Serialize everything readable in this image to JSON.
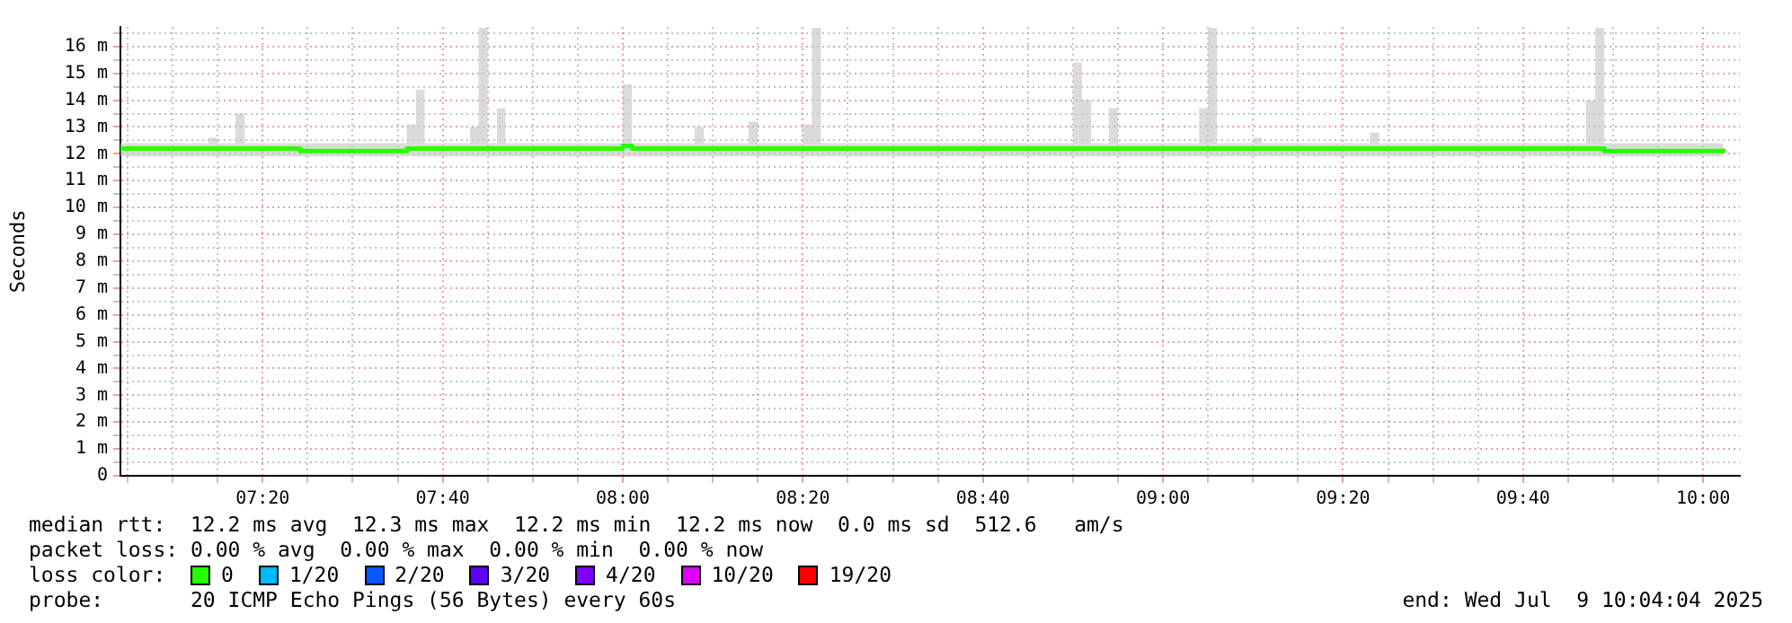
{
  "chart_data": {
    "type": "line",
    "ylabel": "Seconds",
    "legend_title": "loss color:",
    "legend": "bottom",
    "grid": true,
    "marker": "none",
    "x": [
      7.07,
      7.233,
      7.25,
      7.283,
      7.3,
      7.403,
      7.6,
      7.617,
      7.633,
      7.717,
      7.733,
      7.75,
      7.767,
      7.783,
      7.903,
      8.0,
      8.017,
      8.133,
      8.15,
      8.233,
      8.25,
      8.333,
      8.35,
      8.367,
      8.57,
      8.833,
      8.85,
      8.867,
      8.9,
      8.917,
      9.067,
      9.083,
      9.1,
      9.167,
      9.183,
      9.383,
      9.4,
      9.57,
      9.783,
      9.8,
      9.817,
      10.037
    ],
    "xlim": [
      7.07,
      10.068
    ],
    "xticks": [
      {
        "value": 7.0833,
        "label": null
      },
      {
        "value": 7.1667,
        "label": null
      },
      {
        "value": 7.25,
        "label": null
      },
      {
        "value": 7.3333,
        "label": "07:20"
      },
      {
        "value": 7.4167,
        "label": null
      },
      {
        "value": 7.5,
        "label": null
      },
      {
        "value": 7.5833,
        "label": null
      },
      {
        "value": 7.6667,
        "label": "07:40"
      },
      {
        "value": 7.75,
        "label": null
      },
      {
        "value": 7.8333,
        "label": null
      },
      {
        "value": 7.9167,
        "label": null
      },
      {
        "value": 8,
        "label": "08:00"
      },
      {
        "value": 8.0833,
        "label": null
      },
      {
        "value": 8.1667,
        "label": null
      },
      {
        "value": 8.25,
        "label": null
      },
      {
        "value": 8.3333,
        "label": "08:20"
      },
      {
        "value": 8.4167,
        "label": null
      },
      {
        "value": 8.5,
        "label": null
      },
      {
        "value": 8.5833,
        "label": null
      },
      {
        "value": 8.6667,
        "label": "08:40"
      },
      {
        "value": 8.75,
        "label": null
      },
      {
        "value": 8.8333,
        "label": null
      },
      {
        "value": 8.9167,
        "label": null
      },
      {
        "value": 9,
        "label": "09:00"
      },
      {
        "value": 9.0833,
        "label": null
      },
      {
        "value": 9.1667,
        "label": null
      },
      {
        "value": 9.25,
        "label": null
      },
      {
        "value": 9.3333,
        "label": "09:20"
      },
      {
        "value": 9.4167,
        "label": null
      },
      {
        "value": 9.5,
        "label": null
      },
      {
        "value": 9.5833,
        "label": null
      },
      {
        "value": 9.6667,
        "label": "09:40"
      },
      {
        "value": 9.75,
        "label": null
      },
      {
        "value": 9.8333,
        "label": null
      },
      {
        "value": 9.9167,
        "label": null
      },
      {
        "value": 10,
        "label": "10:00"
      }
    ],
    "ylim": [
      0,
      16.73
    ],
    "yticks": [
      0,
      {
        "value": 0.5,
        "label": null
      },
      {
        "value": 1,
        "label": "1 m"
      },
      {
        "value": 1.5,
        "label": null
      },
      {
        "value": 2,
        "label": "2 m"
      },
      {
        "value": 2.5,
        "label": null
      },
      {
        "value": 3,
        "label": "3 m"
      },
      {
        "value": 3.5,
        "label": null
      },
      {
        "value": 4,
        "label": "4 m"
      },
      {
        "value": 4.5,
        "label": null
      },
      {
        "value": 5,
        "label": "5 m"
      },
      {
        "value": 5.5,
        "label": null
      },
      {
        "value": 6,
        "label": "6 m"
      },
      {
        "value": 6.5,
        "label": null
      },
      {
        "value": 7,
        "label": "7 m"
      },
      {
        "value": 7.5,
        "label": null
      },
      {
        "value": 8,
        "label": "8 m"
      },
      {
        "value": 8.5,
        "label": null
      },
      {
        "value": 9,
        "label": "9 m"
      },
      {
        "value": 9.5,
        "label": null
      },
      {
        "value": 10,
        "label": "10 m"
      },
      {
        "value": 10.5,
        "label": null
      },
      {
        "value": 11,
        "label": "11 m"
      },
      {
        "value": 11.5,
        "label": null
      },
      {
        "value": 12,
        "label": "12 m"
      },
      {
        "value": 12.5,
        "label": null
      },
      {
        "value": 13,
        "label": "13 m"
      },
      {
        "value": 13.5,
        "label": null
      },
      {
        "value": 14,
        "label": "14 m"
      },
      {
        "value": 14.5,
        "label": null
      },
      {
        "value": 15,
        "label": "15 m"
      },
      {
        "value": 15.5,
        "label": null
      },
      {
        "value": 16,
        "label": "16 m"
      },
      {
        "value": 16.5,
        "label": null
      }
    ],
    "series": [
      {
        "name": "0",
        "color": "#26ff00",
        "values": [
          12.2,
          12.2,
          12.2,
          12.2,
          12.2,
          12.1,
          12.2,
          12.2,
          12.2,
          12.2,
          12.2,
          12.2,
          12.2,
          12.2,
          12.2,
          12.3,
          12.2,
          12.2,
          12.2,
          12.2,
          12.2,
          12.2,
          12.2,
          12.2,
          12.2,
          12.2,
          12.2,
          12.2,
          12.2,
          12.2,
          12.2,
          12.2,
          12.2,
          12.2,
          12.2,
          12.2,
          12.2,
          12.2,
          12.2,
          12.2,
          12.1,
          12.2
        ],
        "lower": [
          11.9,
          11.9,
          11.9,
          11.9,
          11.9,
          11.9,
          11.9,
          11.9,
          11.9,
          11.9,
          11.9,
          11.9,
          11.9,
          11.9,
          11.9,
          11.9,
          11.9,
          11.9,
          11.9,
          11.9,
          11.9,
          11.9,
          11.9,
          11.9,
          11.9,
          11.9,
          11.9,
          11.9,
          11.9,
          11.9,
          11.9,
          11.9,
          11.9,
          11.9,
          11.9,
          11.9,
          11.9,
          11.9,
          11.9,
          11.9,
          11.9,
          11.9
        ],
        "upper": [
          12.4,
          12.6,
          12.4,
          13.5,
          12.4,
          12.4,
          13.1,
          14.4,
          12.4,
          13.0,
          16.7,
          12.4,
          13.7,
          12.4,
          12.4,
          14.6,
          12.4,
          13.0,
          12.4,
          13.2,
          12.4,
          13.1,
          16.7,
          12.4,
          12.4,
          15.4,
          14.0,
          12.4,
          13.7,
          12.4,
          13.7,
          16.7,
          12.4,
          12.6,
          12.4,
          12.8,
          12.4,
          12.4,
          14.0,
          16.7,
          12.4,
          12.4
        ]
      },
      {
        "name": "1/20",
        "color": "#00b8ff",
        "values": [
          null,
          null,
          null,
          null,
          null,
          null,
          null,
          null,
          null,
          null,
          null,
          null,
          null,
          null,
          null,
          null,
          null,
          null,
          null,
          null,
          null,
          null,
          null,
          null,
          null,
          null,
          null,
          null,
          null,
          null,
          null,
          null,
          null,
          null,
          null,
          null,
          null,
          null,
          null,
          null,
          null,
          null
        ]
      },
      {
        "name": "2/20",
        "color": "#0059ff",
        "values": [
          null,
          null,
          null,
          null,
          null,
          null,
          null,
          null,
          null,
          null,
          null,
          null,
          null,
          null,
          null,
          null,
          null,
          null,
          null,
          null,
          null,
          null,
          null,
          null,
          null,
          null,
          null,
          null,
          null,
          null,
          null,
          null,
          null,
          null,
          null,
          null,
          null,
          null,
          null,
          null,
          null,
          null
        ]
      },
      {
        "name": "3/20",
        "color": "#5e00ff",
        "values": [
          null,
          null,
          null,
          null,
          null,
          null,
          null,
          null,
          null,
          null,
          null,
          null,
          null,
          null,
          null,
          null,
          null,
          null,
          null,
          null,
          null,
          null,
          null,
          null,
          null,
          null,
          null,
          null,
          null,
          null,
          null,
          null,
          null,
          null,
          null,
          null,
          null,
          null,
          null,
          null,
          null,
          null
        ]
      },
      {
        "name": "4/20",
        "color": "#7e00ff",
        "values": [
          null,
          null,
          null,
          null,
          null,
          null,
          null,
          null,
          null,
          null,
          null,
          null,
          null,
          null,
          null,
          null,
          null,
          null,
          null,
          null,
          null,
          null,
          null,
          null,
          null,
          null,
          null,
          null,
          null,
          null,
          null,
          null,
          null,
          null,
          null,
          null,
          null,
          null,
          null,
          null,
          null,
          null
        ]
      },
      {
        "name": "10/20",
        "color": "#dd00ff",
        "values": [
          null,
          null,
          null,
          null,
          null,
          null,
          null,
          null,
          null,
          null,
          null,
          null,
          null,
          null,
          null,
          null,
          null,
          null,
          null,
          null,
          null,
          null,
          null,
          null,
          null,
          null,
          null,
          null,
          null,
          null,
          null,
          null,
          null,
          null,
          null,
          null,
          null,
          null,
          null,
          null,
          null,
          null
        ]
      },
      {
        "name": "19/20",
        "color": "#ff0000",
        "values": [
          null,
          null,
          null,
          null,
          null,
          null,
          null,
          null,
          null,
          null,
          null,
          null,
          null,
          null,
          null,
          null,
          null,
          null,
          null,
          null,
          null,
          null,
          null,
          null,
          null,
          null,
          null,
          null,
          null,
          null,
          null,
          null,
          null,
          null,
          null,
          null,
          null,
          null,
          null,
          null,
          null,
          null
        ]
      }
    ],
    "annotations": [
      "median rtt:  12.2 ms avg  12.3 ms max  12.2 ms min  12.2 ms now  0.0 ms sd  512.6   am/s",
      "packet loss: 0.00 % avg  0.00 % max  0.00 % min  0.00 % now",
      "probe:       20 ICMP Echo Pings (56 Bytes) every 60s",
      "end: Wed Jul  9 10:04:04 2025"
    ]
  }
}
